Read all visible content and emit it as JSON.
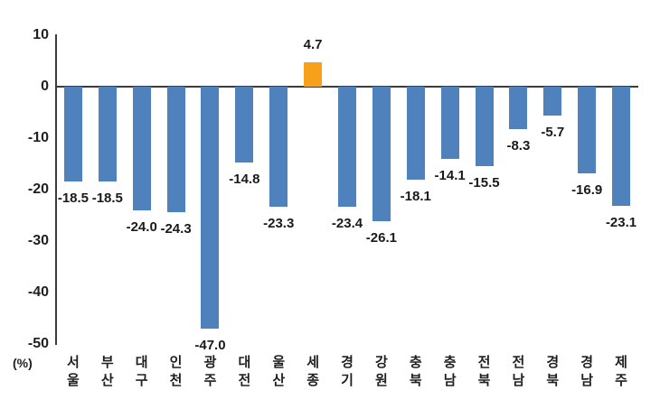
{
  "chart": {
    "unit_label": "(%)"
  },
  "chart_data": {
    "type": "bar",
    "title": "",
    "xlabel": "",
    "ylabel": "(%)",
    "categories": [
      "서울",
      "부산",
      "대구",
      "인천",
      "광주",
      "대전",
      "울산",
      "세종",
      "경기",
      "강원",
      "충북",
      "충남",
      "전북",
      "전남",
      "경북",
      "경남",
      "제주"
    ],
    "values": [
      -18.5,
      -18.5,
      -24.0,
      -24.3,
      -47.0,
      -14.8,
      -23.3,
      4.7,
      -23.4,
      -26.1,
      -18.1,
      -14.1,
      -15.5,
      -8.3,
      -5.7,
      -16.9,
      -23.1
    ],
    "value_labels": [
      "-18.5",
      "-18.5",
      "-24.0",
      "-24.3",
      "-47.0",
      "-14.8",
      "-23.3",
      "4.7",
      "-23.4",
      "-26.1",
      "-18.1",
      "-14.1",
      "-15.5",
      "-8.3",
      "-5.7",
      "-16.9",
      "-23.1"
    ],
    "y_ticks": [
      10,
      0,
      -10,
      -20,
      -30,
      -40,
      -50
    ],
    "y_tick_labels": [
      "10",
      "0",
      "-10",
      "-20",
      "-30",
      "-40",
      "-50"
    ],
    "ylim": [
      -50,
      10
    ],
    "grid": false,
    "legend": "none",
    "bar_color": "#4F81BD",
    "highlight_color": "#F9A01B",
    "highlight_index": 7,
    "axis_color": "#3b3b3b",
    "text_color": "#1f1f1f"
  }
}
